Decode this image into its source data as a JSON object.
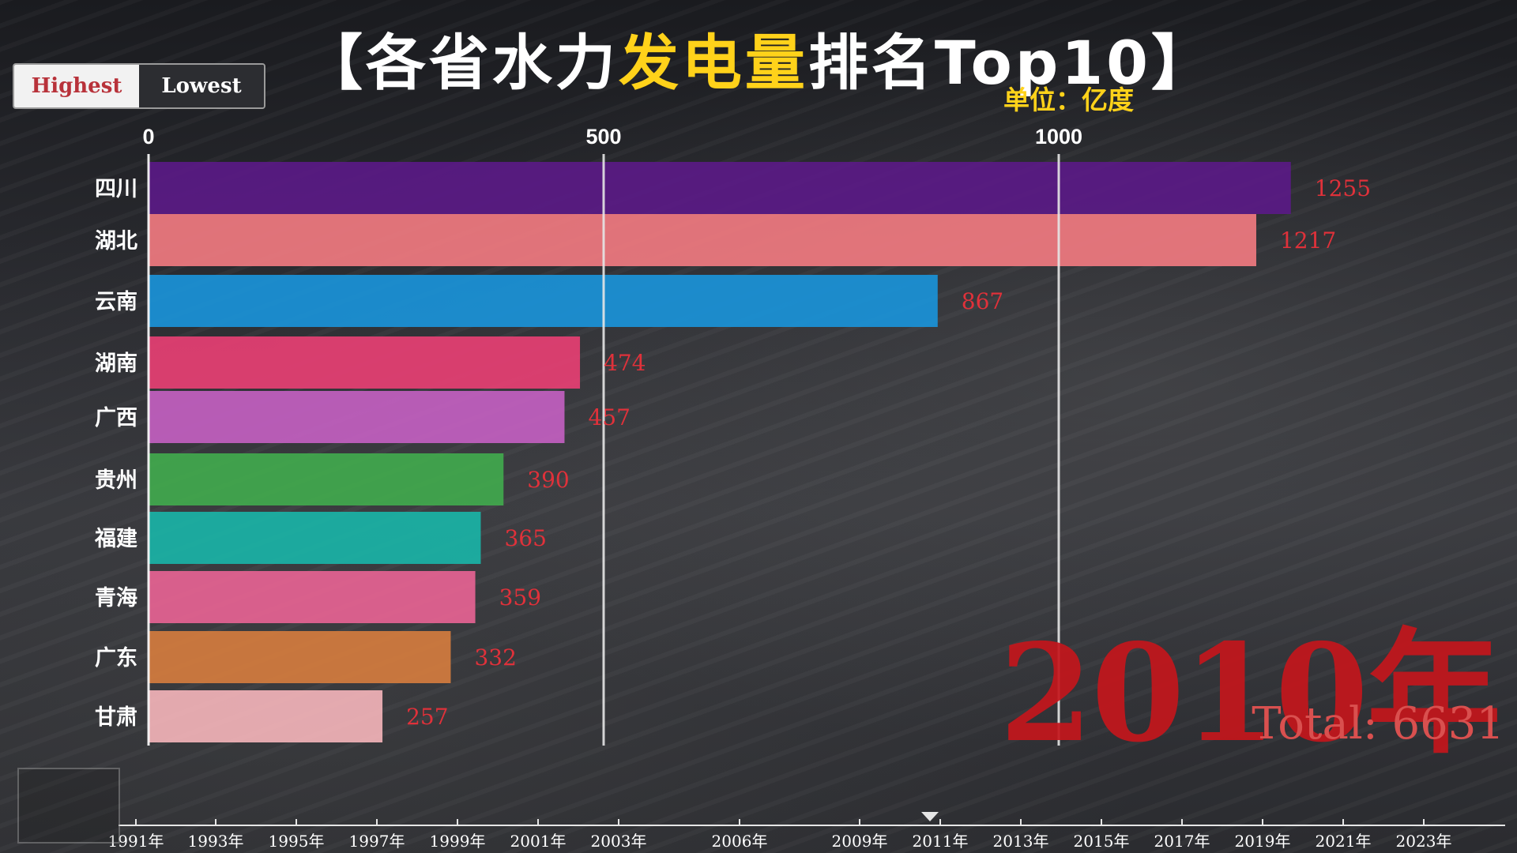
{
  "title_prefix": "【各省水力",
  "title_highlight": "发电量",
  "title_suffix": "排名Top10】",
  "unit_text": "单位：亿度",
  "toggle": {
    "highest_label": "Highest",
    "lowest_label": "Lowest",
    "active": "Highest"
  },
  "year_label": "2010年",
  "total_label": "Total: 6631",
  "colors": {
    "highlight": "#ffd21a",
    "value_label": "#e0313a",
    "year": "#c4161c"
  },
  "chart_data": {
    "type": "bar",
    "orientation": "horizontal",
    "categories": [
      "四川",
      "湖北",
      "云南",
      "湖南",
      "广西",
      "贵州",
      "福建",
      "青海",
      "广东",
      "甘肃"
    ],
    "values": [
      1255,
      1217,
      867,
      474,
      457,
      390,
      365,
      359,
      332,
      257
    ],
    "value_labels": [
      "1255",
      "1217",
      "867",
      "474",
      "457",
      "390",
      "365",
      "359",
      "332",
      "257"
    ],
    "bar_colors": [
      "#5a1a86",
      "#f07a80",
      "#1a93d8",
      "#e63f73",
      "#c25fc0",
      "#41a94d",
      "#1ab3a6",
      "#e66393",
      "#d47c3e",
      "#f2b3b8"
    ],
    "xlim": [
      0,
      1300
    ],
    "x_ticks": [
      0,
      500,
      1000
    ],
    "x_tick_labels": [
      "0",
      "500",
      "1000"
    ],
    "grid": true,
    "title": "【各省水力发电量排名Top10】",
    "unit": "单位：亿度"
  },
  "timeline": {
    "labels": [
      "1991年",
      "1993年",
      "1995年",
      "1997年",
      "1999年",
      "2001年",
      "2003年",
      "2006年",
      "2009年",
      "2011年",
      "2013年",
      "2015年",
      "2017年",
      "2019年",
      "2021年",
      "2023年"
    ],
    "current": "2010年"
  }
}
